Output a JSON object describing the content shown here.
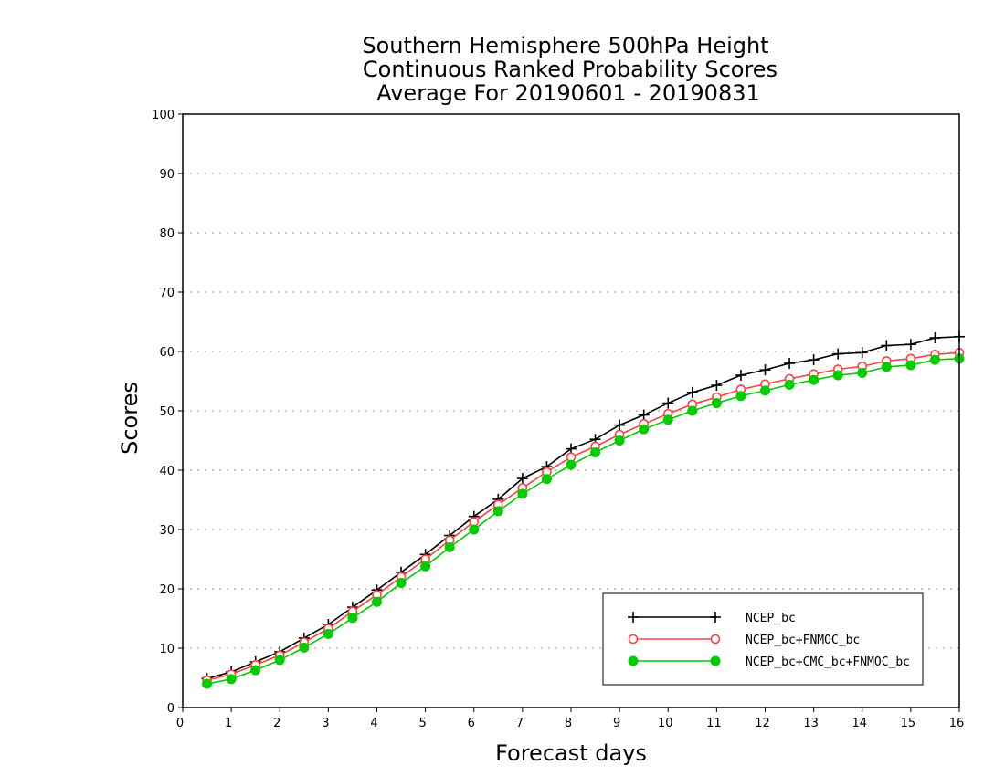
{
  "chart_data": {
    "type": "line",
    "title": [
      "Southern Hemisphere 500hPa Height",
      "Continuous Ranked Probability Scores",
      "Average For 20190601 - 20190831"
    ],
    "xlabel": "Forecast days",
    "ylabel": "Scores",
    "xlim": [
      0,
      16
    ],
    "ylim": [
      0,
      100
    ],
    "xticks": [
      0,
      1,
      2,
      3,
      4,
      5,
      6,
      7,
      8,
      9,
      10,
      11,
      12,
      13,
      14,
      15,
      16
    ],
    "yticks": [
      0,
      10,
      20,
      30,
      40,
      50,
      60,
      70,
      80,
      90,
      100
    ],
    "grid": "horizontal-dotted",
    "legend_position": "bottom-right",
    "x": [
      0.5,
      1,
      1.5,
      2,
      2.5,
      3,
      3.5,
      4,
      4.5,
      5,
      5.5,
      6,
      6.5,
      7,
      7.5,
      8,
      8.5,
      9,
      9.5,
      10,
      10.5,
      11,
      11.5,
      12,
      12.5,
      13,
      13.5,
      14,
      14.5,
      15,
      15.5,
      16
    ],
    "series": [
      {
        "name": "NCEP_bc",
        "color": "#000000",
        "marker": "plus",
        "values": [
          4.9,
          6.0,
          7.7,
          9.4,
          11.7,
          14.0,
          16.9,
          19.8,
          22.8,
          25.8,
          29.0,
          32.2,
          35.1,
          38.6,
          40.6,
          43.6,
          45.2,
          47.6,
          49.3,
          51.3,
          53.1,
          54.3,
          56.0,
          56.9,
          58.0,
          58.6,
          59.6,
          59.8,
          61.0,
          61.2,
          62.3,
          62.5
        ]
      },
      {
        "name": "NCEP_bc+FNMOC_bc",
        "color": "#ff4040",
        "marker": "open-circle",
        "values": [
          4.6,
          5.6,
          7.2,
          8.8,
          11.0,
          13.3,
          16.2,
          19.0,
          22.0,
          25.0,
          28.2,
          31.3,
          34.2,
          37.0,
          39.7,
          42.2,
          44.0,
          46.0,
          47.8,
          49.5,
          51.1,
          52.3,
          53.6,
          54.5,
          55.4,
          56.2,
          57.0,
          57.5,
          58.4,
          58.8,
          59.5,
          59.8
        ]
      },
      {
        "name": "NCEP_bc+CMC_bc+FNMOC_bc",
        "color": "#00cc00",
        "marker": "filled-circle",
        "values": [
          4.0,
          4.8,
          6.3,
          8.0,
          10.1,
          12.4,
          15.1,
          17.8,
          21.0,
          23.8,
          27.0,
          30.0,
          33.1,
          36.0,
          38.5,
          40.9,
          43.0,
          45.0,
          46.9,
          48.5,
          50.0,
          51.3,
          52.5,
          53.4,
          54.4,
          55.2,
          56.0,
          56.4,
          57.4,
          57.7,
          58.6,
          58.8
        ]
      }
    ]
  }
}
